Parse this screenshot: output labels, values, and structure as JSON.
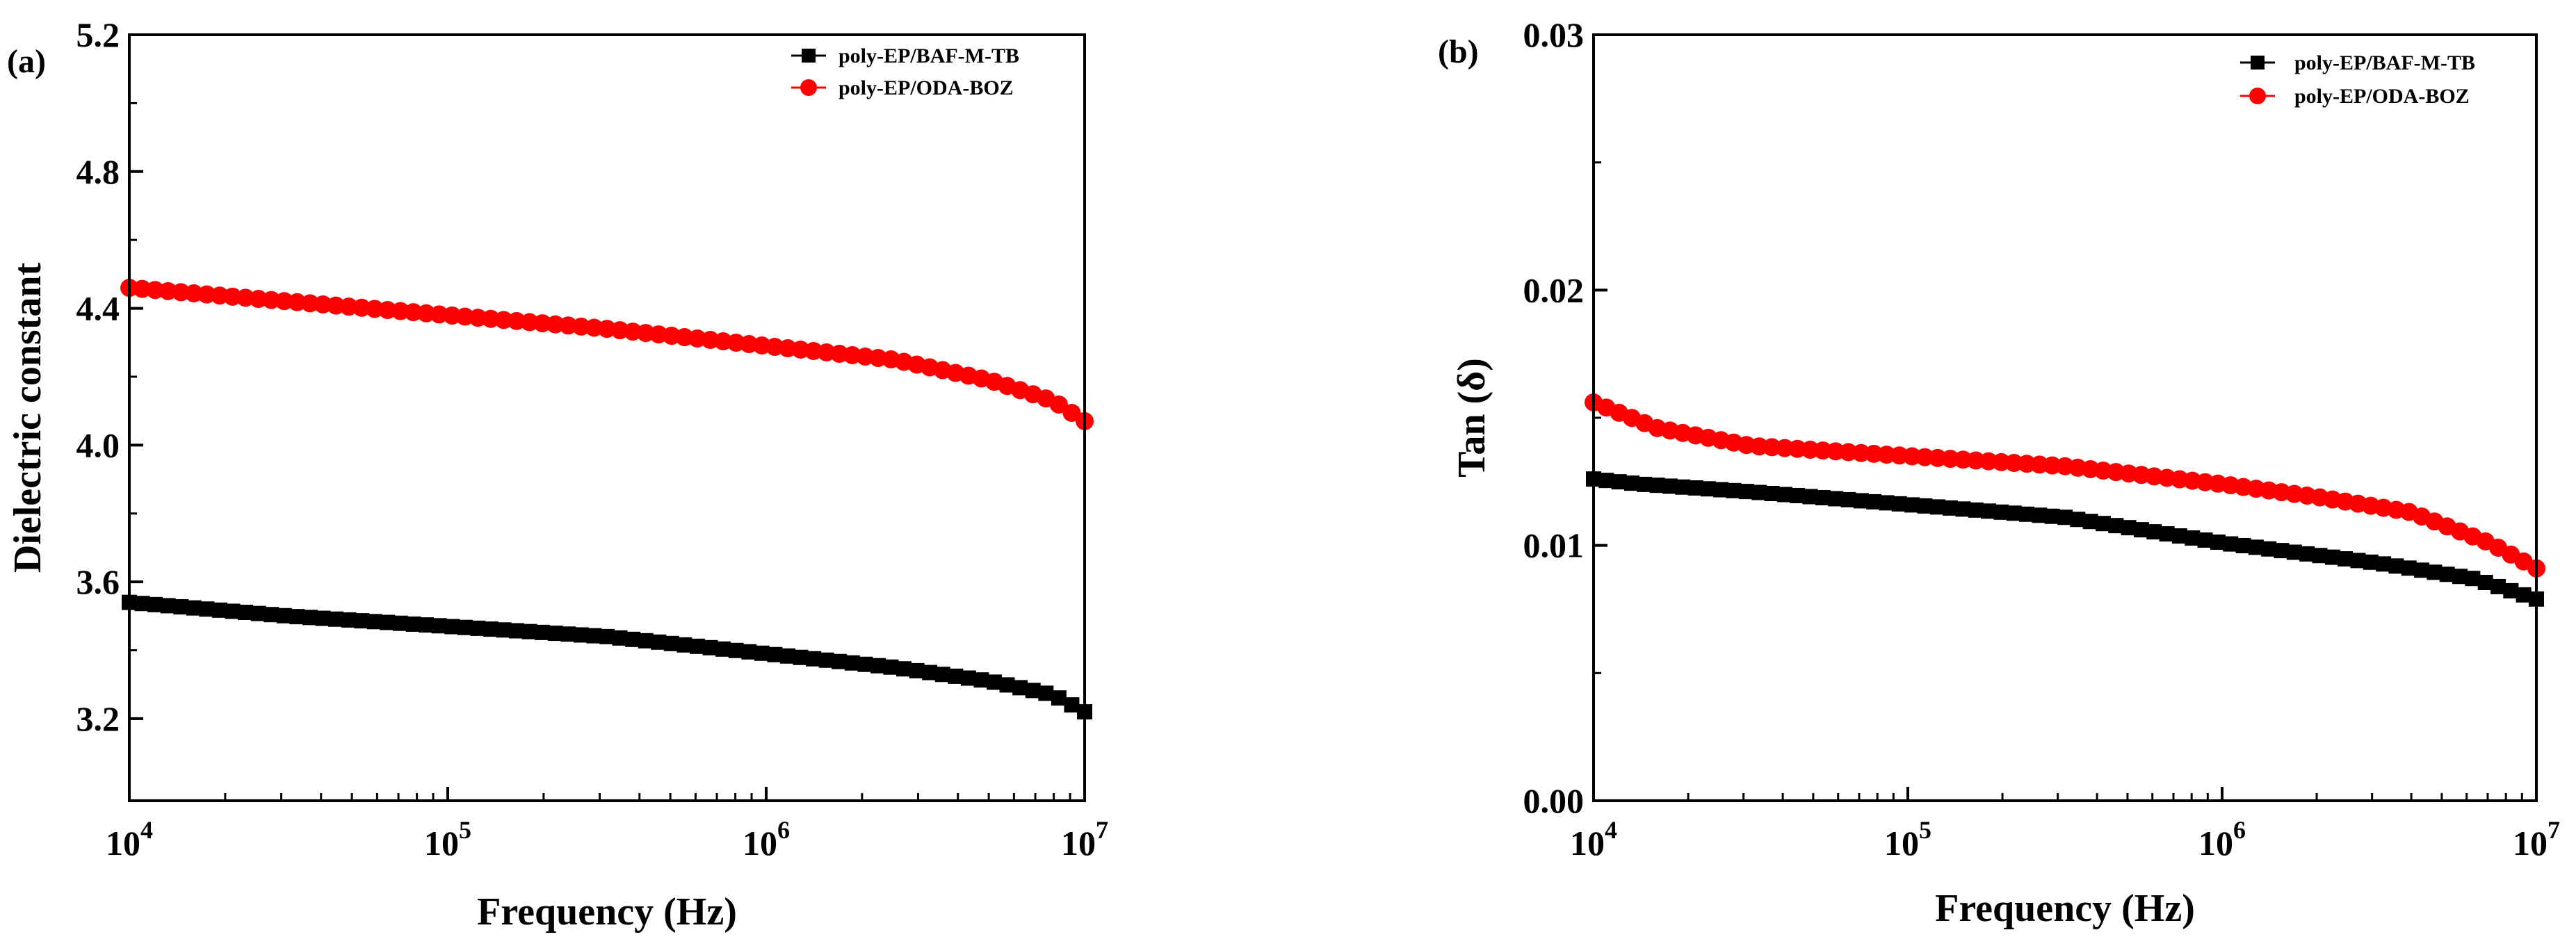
{
  "chart_data": [
    {
      "type": "scatter",
      "panel_label": "(a)",
      "title": "",
      "xlabel": "Frequency (Hz)",
      "ylabel": "Dielectric constant",
      "xscale": "log",
      "xlim": [
        10000,
        10000000
      ],
      "ylim": [
        2.96,
        5.2
      ],
      "x_ticks": [
        {
          "value": 10000,
          "base": "10",
          "exp": "4"
        },
        {
          "value": 100000,
          "base": "10",
          "exp": "5"
        },
        {
          "value": 1000000,
          "base": "10",
          "exp": "6"
        },
        {
          "value": 10000000,
          "base": "10",
          "exp": "7"
        }
      ],
      "y_ticks": [
        {
          "value": 3.2,
          "label": "3.2"
        },
        {
          "value": 3.6,
          "label": "3.6"
        },
        {
          "value": 4.0,
          "label": "4.0"
        },
        {
          "value": 4.4,
          "label": "4.4"
        },
        {
          "value": 4.8,
          "label": "4.8"
        },
        {
          "value": 5.2,
          "label": "5.2"
        }
      ],
      "legend_position": "top-right",
      "series": [
        {
          "name": "poly-EP/BAF-M-TB",
          "marker": "square",
          "color": "#000000",
          "anchors": [
            [
              4,
              3.54
            ],
            [
              4.5,
              3.5
            ],
            [
              5,
              3.47
            ],
            [
              5.5,
              3.44
            ],
            [
              6,
              3.39
            ],
            [
              6.4,
              3.35
            ],
            [
              6.7,
              3.31
            ],
            [
              6.9,
              3.27
            ],
            [
              7,
              3.22
            ]
          ]
        },
        {
          "name": "poly-EP/ODA-BOZ",
          "marker": "circle",
          "color": "#ff0000",
          "anchors": [
            [
              4,
              4.46
            ],
            [
              4.5,
              4.42
            ],
            [
              5,
              4.38
            ],
            [
              5.5,
              4.34
            ],
            [
              6,
              4.29
            ],
            [
              6.4,
              4.25
            ],
            [
              6.7,
              4.19
            ],
            [
              6.9,
              4.13
            ],
            [
              7,
              4.07
            ]
          ]
        }
      ],
      "points_per_series": 75
    },
    {
      "type": "scatter",
      "panel_label": "(b)",
      "title": "",
      "xlabel": "Frequency (Hz)",
      "ylabel": "Tan  (δ)",
      "xscale": "log",
      "xlim": [
        10000,
        10000000
      ],
      "ylim": [
        0.0,
        0.03
      ],
      "x_ticks": [
        {
          "value": 10000,
          "base": "10",
          "exp": "4"
        },
        {
          "value": 100000,
          "base": "10",
          "exp": "5"
        },
        {
          "value": 1000000,
          "base": "10",
          "exp": "6"
        },
        {
          "value": 10000000,
          "base": "10",
          "exp": "7"
        }
      ],
      "y_ticks": [
        {
          "value": 0.0,
          "label": "0.00"
        },
        {
          "value": 0.01,
          "label": "0.01"
        },
        {
          "value": 0.02,
          "label": "0.02"
        },
        {
          "value": 0.03,
          "label": "0.03"
        }
      ],
      "legend_position": "top-right",
      "series": [
        {
          "name": "poly-EP/BAF-M-TB",
          "marker": "square",
          "color": "#000000",
          "anchors": [
            [
              4,
              0.0126
            ],
            [
              4.15,
              0.0124
            ],
            [
              4.5,
              0.0121
            ],
            [
              5,
              0.0116
            ],
            [
              5.5,
              0.0111
            ],
            [
              6,
              0.0101
            ],
            [
              6.5,
              0.0093
            ],
            [
              6.8,
              0.0087
            ],
            [
              7,
              0.0079
            ]
          ]
        },
        {
          "name": "poly-EP/ODA-BOZ",
          "marker": "circle",
          "color": "#ff0000",
          "anchors": [
            [
              4,
              0.0156
            ],
            [
              4.2,
              0.0146
            ],
            [
              4.5,
              0.0139
            ],
            [
              5,
              0.0135
            ],
            [
              5.5,
              0.0131
            ],
            [
              6,
              0.0124
            ],
            [
              6.3,
              0.0119
            ],
            [
              6.6,
              0.0113
            ],
            [
              6.85,
              0.0101
            ],
            [
              7,
              0.0091
            ]
          ]
        }
      ],
      "points_per_series": 75
    }
  ]
}
